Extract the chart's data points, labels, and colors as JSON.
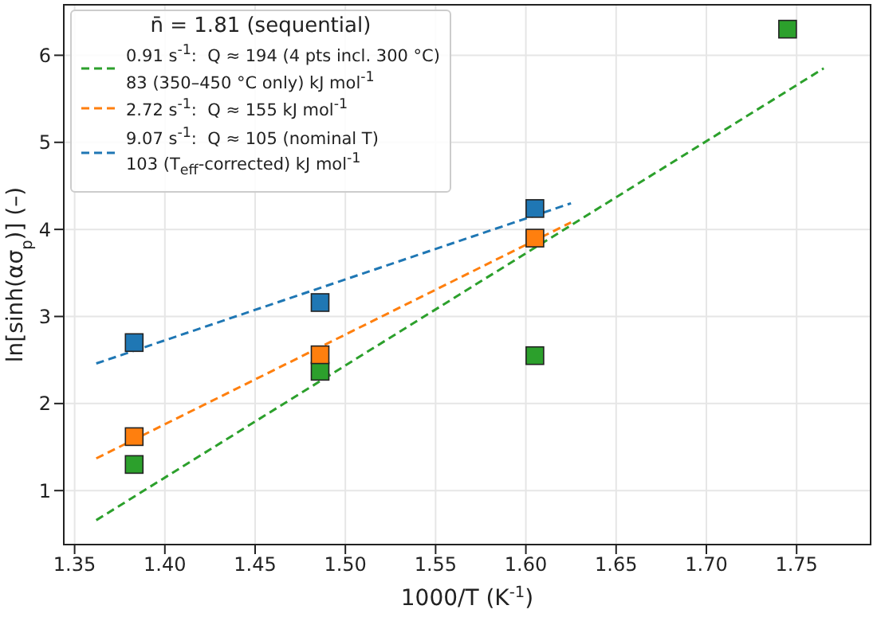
{
  "chart_data": {
    "type": "scatter",
    "xlabel": "1000/T  (K$^{-1}$)",
    "ylabel": "ln[sinh(ασ$_{p}$)]  (–)",
    "legend_title": "n̄ = 1.81 (sequential)",
    "xlim": [
      1.344,
      1.791
    ],
    "ylim": [
      0.38,
      6.58
    ],
    "xticks": [
      1.35,
      {
        "value": 1.4,
        "label": "1.40"
      },
      1.45,
      {
        "value": 1.5,
        "label": "1.50"
      },
      1.55,
      {
        "value": 1.6,
        "label": "1.60"
      },
      1.65,
      {
        "value": 1.7,
        "label": "1.70"
      },
      1.75
    ],
    "yticks": [
      1,
      2,
      3,
      4,
      5,
      6
    ],
    "grid": true,
    "legend": "top left",
    "line_style": "dashed",
    "series": [
      {
        "color": "#2ca02c",
        "marker": "square",
        "x": [
          1.383,
          1.486,
          1.605,
          1.745
        ],
        "values": [
          1.3,
          2.37,
          2.55,
          6.3
        ]
      },
      {
        "color": "#ff7f0e",
        "marker": "square",
        "x": [
          1.383,
          1.486,
          1.605
        ],
        "values": [
          1.62,
          2.56,
          3.9
        ]
      },
      {
        "color": "#1f77b4",
        "marker": "square",
        "x": [
          1.383,
          1.486,
          1.605
        ],
        "values": [
          2.7,
          3.16,
          4.24
        ]
      },
      {
        "type": "line",
        "marker": "none",
        "name": "0.91 s$^{-1}$:  Q ≈ 194 (4 pts incl. 300 °C)\n83 (350–450 °C only) kJ mol$^{-1}$",
        "color": "#2ca02c",
        "x": [
          1.362,
          1.765
        ],
        "values": [
          0.66,
          5.85
        ]
      },
      {
        "type": "line",
        "marker": "none",
        "name": "2.72 s$^{-1}$:  Q ≈ 155 kJ mol$^{-1}$",
        "color": "#ff7f0e",
        "x": [
          1.362,
          1.625
        ],
        "values": [
          1.37,
          4.08
        ]
      },
      {
        "type": "line",
        "marker": "none",
        "name": "9.07 s$^{-1}$:  Q ≈ 105 (nominal T)\n103 (T$_{eff}$-corrected) kJ mol$^{-1}$",
        "color": "#1f77b4",
        "x": [
          1.362,
          1.625
        ],
        "values": [
          2.46,
          4.3
        ]
      }
    ]
  }
}
